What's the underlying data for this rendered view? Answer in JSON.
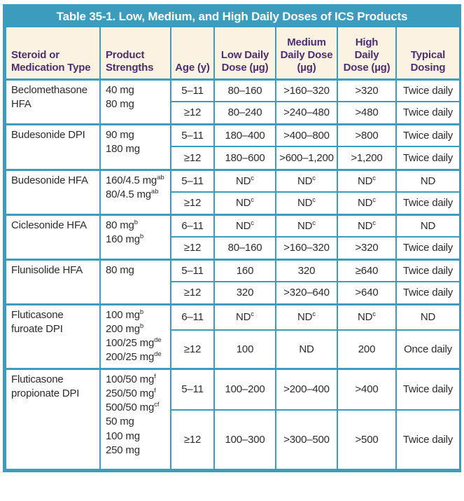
{
  "table": {
    "title": "Table 35-1. Low, Medium, and High Daily Doses of ICS Products",
    "columns": [
      "Steroid or\nMedication Type",
      "Product\nStrengths",
      "Age (y)",
      "Low Daily\nDose (µg)",
      "Medium\nDaily Dose\n(µg)",
      "High\nDaily\nDose (µg)",
      "Typical\nDosing"
    ],
    "rows": [
      {
        "medication": "Beclomethasone HFA",
        "strengths": [
          "40 mg",
          "80 mg"
        ],
        "subrows": [
          {
            "age": "5–11",
            "low": "80–160",
            "medium": ">160–320",
            "high": ">320",
            "dosing": "Twice daily"
          },
          {
            "age": "≥12",
            "low": "80–240",
            "medium": ">240–480",
            "high": ">480",
            "dosing": "Twice daily"
          }
        ]
      },
      {
        "medication": "Budesonide DPI",
        "strengths": [
          "90 mg",
          "180 mg"
        ],
        "subrows": [
          {
            "age": "5–11",
            "low": "180–400",
            "medium": ">400–800",
            "high": ">800",
            "dosing": "Twice daily"
          },
          {
            "age": "≥12",
            "low": "180–600",
            "medium": ">600–1,200",
            "high": ">1,200",
            "dosing": "Twice daily"
          }
        ]
      },
      {
        "medication": "Budesonide HFA",
        "strengths": [
          "160/4.5 mg^{ab}",
          "80/4.5 mg^{ab}"
        ],
        "subrows": [
          {
            "age": "5–11",
            "low": "ND^{c}",
            "medium": "ND^{c}",
            "high": "ND^{c}",
            "dosing": "ND"
          },
          {
            "age": "≥12",
            "low": "ND^{c}",
            "medium": "ND^{c}",
            "high": "ND^{c}",
            "dosing": "Twice daily"
          }
        ]
      },
      {
        "medication": "Ciclesonide HFA",
        "strengths": [
          "80 mg^{b}",
          "160 mg^{b}"
        ],
        "subrows": [
          {
            "age": "6–11",
            "low": "ND^{c}",
            "medium": "ND^{c}",
            "high": "ND^{c}",
            "dosing": "ND"
          },
          {
            "age": "≥12",
            "low": "80–160",
            "medium": ">160–320",
            "high": ">320",
            "dosing": "Twice daily"
          }
        ]
      },
      {
        "medication": "Flunisolide HFA",
        "strengths": [
          "80 mg"
        ],
        "subrows": [
          {
            "age": "5–11",
            "low": "160",
            "medium": "320",
            "high": "≥640",
            "dosing": "Twice daily"
          },
          {
            "age": "≥12",
            "low": "320",
            "medium": ">320–640",
            "high": ">640",
            "dosing": "Twice daily"
          }
        ]
      },
      {
        "medication": "Fluticasone furoate DPI",
        "strengths": [
          "100 mg^{b}",
          "200 mg^{b}",
          "100/25 mg^{de}",
          "200/25 mg^{de}"
        ],
        "subrows": [
          {
            "age": "6–11",
            "low": "ND^{c}",
            "medium": "ND^{c}",
            "high": "ND^{c}",
            "dosing": "ND"
          },
          {
            "age": "≥12",
            "low": "100",
            "medium": "ND",
            "high": "200",
            "dosing": "Once daily"
          }
        ]
      },
      {
        "medication": "Fluticasone propionate DPI",
        "strengths": [
          "100/50 mg^{f}",
          "250/50 mg^{f}",
          "500/50 mg^{cf}",
          "50 mg",
          "100 mg",
          "250 mg"
        ],
        "subrows": [
          {
            "age": "5–11",
            "low": "100–200",
            "medium": ">200–400",
            "high": ">400",
            "dosing": "Twice daily"
          },
          {
            "age": "≥12",
            "low": "100–300",
            "medium": ">300–500",
            "high": ">500",
            "dosing": "Twice daily"
          }
        ]
      }
    ]
  },
  "colors": {
    "accent_teal": "#3B9CBE",
    "header_bg": "#FCF2E2",
    "header_text": "#4E2D72",
    "body_text": "#2B2B2B",
    "title_text": "#FDFBF5"
  }
}
